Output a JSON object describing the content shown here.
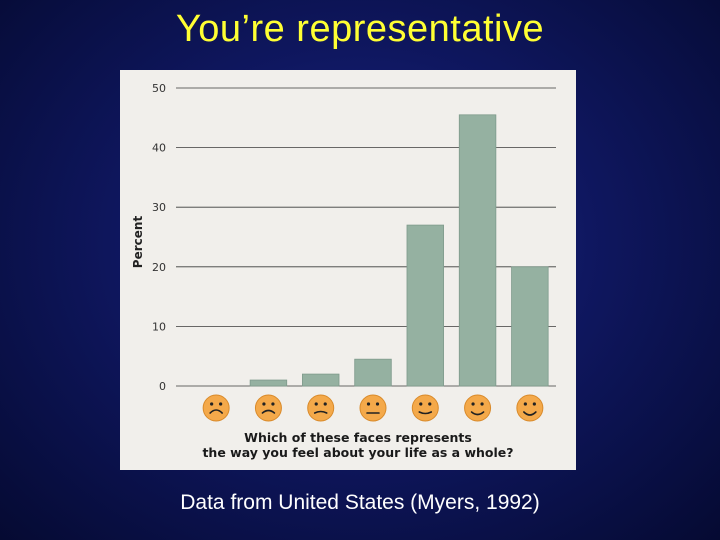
{
  "slide": {
    "title": "You’re representative",
    "caption": "Data from United States (Myers, 1992)"
  },
  "chart_data": {
    "type": "bar",
    "title": "",
    "ylabel": "Percent",
    "xlabel_lines": [
      "Which of these faces represents",
      "the way you feel about your life as a whole?"
    ],
    "ylim": [
      0,
      50
    ],
    "yticks": [
      0,
      10,
      20,
      30,
      40,
      50
    ],
    "categories": [
      "very-sad-face",
      "sad-face",
      "slightly-sad-face",
      "neutral-face",
      "slightly-happy-face",
      "happy-face",
      "very-happy-face"
    ],
    "values": [
      0,
      1,
      2,
      4.5,
      27,
      45.5,
      20
    ],
    "bar_color": "#95b1a1",
    "face_color": "#f4a94a",
    "grid": true
  }
}
